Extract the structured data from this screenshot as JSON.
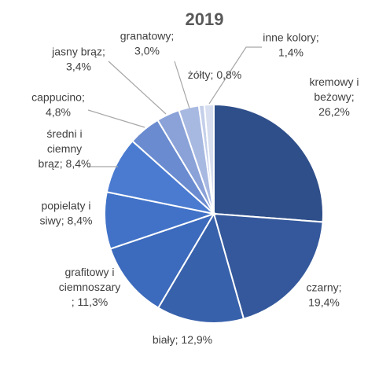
{
  "chart_data": {
    "type": "pie",
    "title": "2019",
    "legend": "none",
    "start": "12 o'clock, clockwise",
    "slices": [
      {
        "label_lines": [
          "kremowy i",
          "beżowy;",
          "26,2%"
        ],
        "value": 26.2,
        "color": "#2f4f8a"
      },
      {
        "label_lines": [
          "czarny;",
          "19,4%"
        ],
        "value": 19.4,
        "color": "#34589b"
      },
      {
        "label_lines": [
          "biały; 12,9%"
        ],
        "value": 12.9,
        "color": "#3861ab"
      },
      {
        "label_lines": [
          "grafitowy i",
          "ciemnoszary",
          "; 11,3%"
        ],
        "value": 11.3,
        "color": "#3c6abc"
      },
      {
        "label_lines": [
          "popielaty i",
          "siwy; 8,4%"
        ],
        "value": 8.4,
        "color": "#4172c8"
      },
      {
        "label_lines": [
          "średni i",
          "ciemny",
          "brąz; 8,4%"
        ],
        "value": 8.4,
        "color": "#4a7bd0"
      },
      {
        "label_lines": [
          "cappucino;",
          "4,8%"
        ],
        "value": 4.8,
        "color": "#6a8bd0"
      },
      {
        "label_lines": [
          "jasny brąz;",
          "3,4%"
        ],
        "value": 3.4,
        "color": "#8aa2d8"
      },
      {
        "label_lines": [
          "granatowy;",
          "3,0%"
        ],
        "value": 3.0,
        "color": "#a8b9e1"
      },
      {
        "label_lines": [
          "żółty; 0,8%"
        ],
        "value": 0.8,
        "color": "#c4cfea"
      },
      {
        "label_lines": [
          "inne kolory;",
          "1,4%"
        ],
        "value": 1.4,
        "color": "#d6deef"
      }
    ]
  }
}
